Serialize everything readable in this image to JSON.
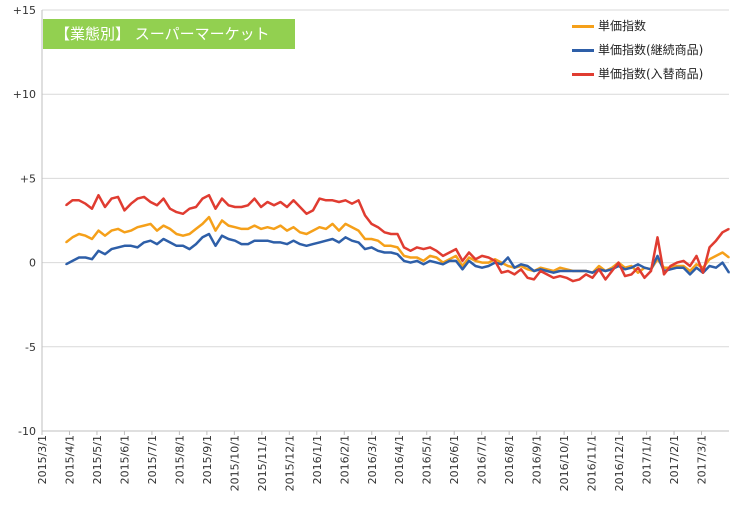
{
  "chart_data": {
    "type": "line",
    "title": "【業態別】 スーパーマーケット",
    "title_bg": "#92d050",
    "ylim": [
      -10,
      15
    ],
    "y_ticks": [
      15,
      10,
      5,
      0,
      -5,
      -10
    ],
    "y_tick_labels": [
      "+15",
      "+10",
      "+5",
      "0",
      "-5",
      "-10"
    ],
    "x_tick_labels": [
      "2015/3/1",
      "2015/4/1",
      "2015/5/1",
      "2015/6/1",
      "2015/7/1",
      "2015/8/1",
      "2015/9/1",
      "2015/10/1",
      "2015/11/1",
      "2015/12/1",
      "2016/1/1",
      "2016/2/1",
      "2016/3/1",
      "2016/4/1",
      "2016/5/1",
      "2016/6/1",
      "2016/7/1",
      "2016/8/1",
      "2016/9/1",
      "2016/10/1",
      "2016/11/1",
      "2016/12/1",
      "2017/1/1",
      "2017/2/1",
      "2017/3/1"
    ],
    "grid": "horizontal",
    "legend_position": "top-right",
    "series": [
      {
        "name": "単価指数",
        "color": "#f5a01a",
        "values": [
          1.2,
          1.5,
          1.7,
          1.6,
          1.4,
          1.9,
          1.6,
          1.9,
          2.0,
          1.8,
          1.9,
          2.1,
          2.2,
          2.3,
          1.9,
          2.2,
          2.0,
          1.7,
          1.6,
          1.7,
          2.0,
          2.3,
          2.7,
          1.9,
          2.5,
          2.2,
          2.1,
          2.0,
          2.0,
          2.2,
          2.0,
          2.1,
          2.0,
          2.2,
          1.9,
          2.1,
          1.8,
          1.7,
          1.9,
          2.1,
          2.0,
          2.3,
          1.9,
          2.3,
          2.1,
          1.9,
          1.4,
          1.4,
          1.3,
          1.0,
          1.0,
          0.9,
          0.4,
          0.3,
          0.3,
          0.1,
          0.4,
          0.3,
          0.0,
          0.2,
          0.4,
          -0.2,
          0.3,
          0.1,
          0.0,
          0.0,
          0.2,
          0.0,
          -0.2,
          -0.3,
          -0.2,
          -0.4,
          -0.5,
          -0.3,
          -0.4,
          -0.5,
          -0.3,
          -0.4,
          -0.5,
          -0.5,
          -0.5,
          -0.6,
          -0.2,
          -0.5,
          -0.3,
          0.0,
          -0.3,
          -0.2,
          -0.6,
          -0.3,
          -0.4,
          0.2,
          -0.3,
          -0.3,
          -0.2,
          -0.2,
          -0.5,
          -0.1,
          -0.3,
          0.2,
          0.4,
          0.6,
          0.3
        ]
      },
      {
        "name": "単価指数(継続商品)",
        "color": "#2e5fa8",
        "values": [
          -0.1,
          0.1,
          0.3,
          0.3,
          0.2,
          0.7,
          0.5,
          0.8,
          0.9,
          1.0,
          1.0,
          0.9,
          1.2,
          1.3,
          1.1,
          1.4,
          1.2,
          1.0,
          1.0,
          0.8,
          1.1,
          1.5,
          1.7,
          1.0,
          1.6,
          1.4,
          1.3,
          1.1,
          1.1,
          1.3,
          1.3,
          1.3,
          1.2,
          1.2,
          1.1,
          1.3,
          1.1,
          1.0,
          1.1,
          1.2,
          1.3,
          1.4,
          1.2,
          1.5,
          1.3,
          1.2,
          0.8,
          0.9,
          0.7,
          0.6,
          0.6,
          0.5,
          0.1,
          0.0,
          0.1,
          -0.1,
          0.1,
          0.0,
          -0.1,
          0.1,
          0.1,
          -0.4,
          0.1,
          -0.2,
          -0.3,
          -0.2,
          0.0,
          -0.1,
          0.3,
          -0.3,
          -0.1,
          -0.2,
          -0.5,
          -0.4,
          -0.5,
          -0.6,
          -0.5,
          -0.5,
          -0.5,
          -0.5,
          -0.5,
          -0.6,
          -0.4,
          -0.5,
          -0.4,
          -0.2,
          -0.4,
          -0.3,
          -0.1,
          -0.3,
          -0.4,
          0.4,
          -0.5,
          -0.4,
          -0.3,
          -0.3,
          -0.7,
          -0.3,
          -0.6,
          -0.2,
          -0.3,
          0.0,
          -0.6
        ]
      },
      {
        "name": "単価指数(入替商品)",
        "color": "#e03c31",
        "values": [
          3.4,
          3.7,
          3.7,
          3.5,
          3.2,
          4.0,
          3.3,
          3.8,
          3.9,
          3.1,
          3.5,
          3.8,
          3.9,
          3.6,
          3.4,
          3.8,
          3.2,
          3.0,
          2.9,
          3.2,
          3.3,
          3.8,
          4.0,
          3.2,
          3.8,
          3.4,
          3.3,
          3.3,
          3.4,
          3.8,
          3.3,
          3.6,
          3.4,
          3.6,
          3.3,
          3.7,
          3.3,
          2.9,
          3.1,
          3.8,
          3.7,
          3.7,
          3.6,
          3.7,
          3.5,
          3.7,
          2.8,
          2.3,
          2.1,
          1.8,
          1.7,
          1.7,
          0.9,
          0.7,
          0.9,
          0.8,
          0.9,
          0.7,
          0.4,
          0.6,
          0.8,
          0.1,
          0.6,
          0.2,
          0.4,
          0.3,
          0.1,
          -0.6,
          -0.5,
          -0.7,
          -0.4,
          -0.9,
          -1.0,
          -0.5,
          -0.7,
          -0.9,
          -0.8,
          -0.9,
          -1.1,
          -1.0,
          -0.7,
          -0.9,
          -0.4,
          -1.0,
          -0.5,
          0.0,
          -0.8,
          -0.7,
          -0.3,
          -0.9,
          -0.5,
          1.5,
          -0.7,
          -0.2,
          0.0,
          0.1,
          -0.2,
          0.4,
          -0.6,
          0.9,
          1.3,
          1.8,
          2.0
        ]
      }
    ]
  }
}
